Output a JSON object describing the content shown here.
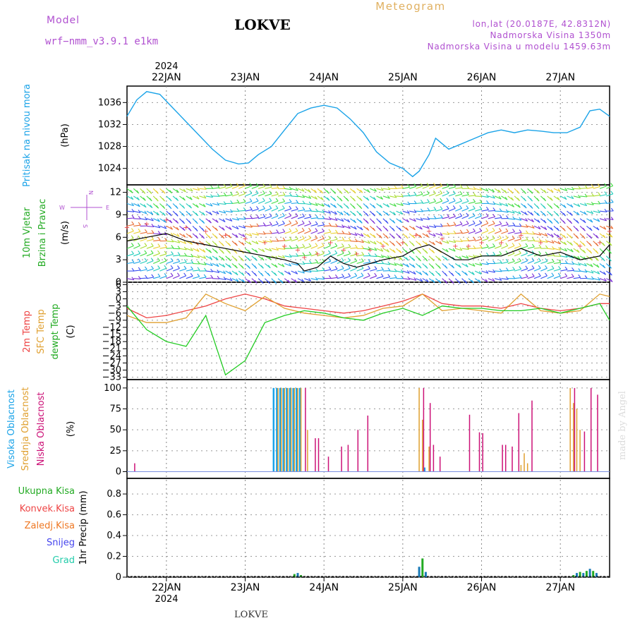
{
  "header": {
    "model_label": "Model",
    "model_name": "wrf−nmm_v3.9.1  e1km",
    "station": "LOKVE",
    "meteogram": "Meteogram",
    "coords": "lon,lat (20.0187E, 42.8312N)",
    "elevation": "Nadmorska Visina 1350m",
    "model_elevation": "Nadmorska Visina u modelu 1459.63m",
    "footer_station": "LOKVE",
    "watermark": "made by Angel"
  },
  "time_axis": {
    "year": "2024",
    "day_labels": [
      "22JAN",
      "23JAN",
      "24JAN",
      "25JAN",
      "26JAN",
      "27JAN"
    ],
    "day_offsets_hours": [
      12,
      36,
      60,
      84,
      108,
      132
    ],
    "range_hours": [
      0,
      147
    ]
  },
  "colors": {
    "pressure": "#1aa3e8",
    "temp2m": "#ee4444",
    "sfc": "#e0a030",
    "dewpt": "#22cc22",
    "high_cloud": "#1aa3e8",
    "mid_cloud": "#e0a030",
    "low_cloud": "#cc1177",
    "total_precip": "#22aa22",
    "conv_precip": "#ee4444",
    "frozen": "#ee7722",
    "snow": "#4444ee",
    "graupel": "#22ccaa",
    "purple_label": "#b050d0",
    "cyan_label": "#1aa3e8",
    "green_label": "#22aa22"
  },
  "panels": {
    "pressure": {
      "ylabel": "Pritisak na nivou mora",
      "unit": "(hPa)",
      "ticks": [
        "1024",
        "1028",
        "1032",
        "1036"
      ]
    },
    "wind": {
      "ylabel1": "10m Vjetar",
      "ylabel2": "Brzina i Pravac",
      "unit": "(m/s)",
      "ticks": [
        "0",
        "3",
        "6",
        "9",
        "12"
      ],
      "compass": [
        "S",
        "W",
        "E",
        "N"
      ]
    },
    "temp": {
      "ylabel1": "2m Temp",
      "ylabel2": "SFC Temp",
      "ylabel3": "dewpt Temp",
      "unit": "(C)",
      "ticks": [
        "6",
        "3",
        "0",
        "−3",
        "−6",
        "−9",
        "−12",
        "−15",
        "−18",
        "−21",
        "−24",
        "−27",
        "−30",
        "−33"
      ]
    },
    "cloud": {
      "ylabel1": "Visoka Oblacnost",
      "ylabel2": "Srednja Oblacnost",
      "ylabel3": "Niska Oblacnost",
      "unit": "(%)",
      "ticks": [
        "0",
        "25",
        "50",
        "75",
        "100"
      ]
    },
    "precip": {
      "legend": [
        "Ukupna Kisa",
        "Konvek.Kisa",
        "Zaledj.Kisa",
        "Snijeg",
        "Grad"
      ],
      "ylabel": "1hr Precip (mm)",
      "ticks": [
        "0",
        "0.2",
        "0.4",
        "0.6",
        "0.8"
      ]
    }
  },
  "chart_data": [
    {
      "type": "line",
      "title": "Pritisak na nivou mora",
      "ylabel": "(hPa)",
      "ylim": [
        1021,
        1039
      ],
      "x_hours": [
        0,
        3,
        6,
        10,
        14,
        18,
        22,
        26,
        30,
        34,
        37,
        40,
        44,
        48,
        52,
        56,
        60,
        64,
        68,
        72,
        76,
        80,
        84,
        87,
        89,
        92,
        94,
        98,
        102,
        106,
        110,
        114,
        118,
        122,
        126,
        130,
        134,
        138,
        141,
        144,
        147
      ],
      "series": [
        {
          "name": "Pritisak",
          "values": [
            1033.5,
            1036.5,
            1038,
            1037.5,
            1035,
            1032.5,
            1030,
            1027.5,
            1025.5,
            1024.8,
            1025,
            1026.5,
            1028,
            1031,
            1034,
            1035,
            1035.5,
            1035,
            1033,
            1030.5,
            1027,
            1025,
            1024,
            1022.5,
            1023.5,
            1026.5,
            1029.5,
            1027.5,
            1028.5,
            1029.5,
            1030.5,
            1031,
            1030.5,
            1031,
            1030.8,
            1030.5,
            1030.5,
            1031.5,
            1034.5,
            1034.8,
            1033.5
          ]
        }
      ]
    },
    {
      "type": "line",
      "title": "10m Vjetar Brzina i Pravac",
      "ylabel": "(m/s)",
      "ylim": [
        0,
        13
      ],
      "x_hours": [
        0,
        6,
        12,
        18,
        24,
        30,
        36,
        42,
        48,
        52,
        54,
        58,
        62,
        66,
        70,
        74,
        78,
        84,
        88,
        92,
        96,
        100,
        104,
        108,
        114,
        120,
        126,
        132,
        138,
        144,
        147
      ],
      "series": [
        {
          "name": "Brzina",
          "values": [
            5.5,
            6,
            6.5,
            5.5,
            5,
            4.5,
            4,
            3.5,
            3,
            2.5,
            1.5,
            2,
            3.5,
            2.5,
            2,
            2.5,
            3,
            3.5,
            4.5,
            5,
            4,
            3,
            3,
            3.5,
            3.5,
            4.5,
            3.5,
            4,
            3,
            3.5,
            5
          ]
        }
      ]
    },
    {
      "type": "line",
      "title": "2m Temp / SFC Temp / dewpt Temp",
      "ylabel": "(C)",
      "ylim": [
        -34,
        7
      ],
      "x_hours": [
        0,
        6,
        12,
        18,
        24,
        30,
        36,
        42,
        48,
        54,
        60,
        66,
        72,
        78,
        84,
        90,
        96,
        102,
        108,
        114,
        120,
        126,
        132,
        138,
        144,
        147
      ],
      "series": [
        {
          "name": "2m Temp",
          "values": [
            -4,
            -8,
            -7,
            -5,
            -3,
            0,
            2,
            0,
            -3,
            -4,
            -5,
            -6,
            -5,
            -3,
            -1,
            2,
            -2,
            -3,
            -3,
            -4,
            -2,
            -4,
            -5,
            -4,
            -2,
            -2
          ]
        },
        {
          "name": "SFC Temp",
          "values": [
            -7,
            -10,
            -10,
            -8,
            2,
            -2,
            -5,
            1,
            -4,
            -6,
            -7,
            -8,
            -7,
            -4,
            -3,
            2,
            -5,
            -4,
            -5,
            -6,
            2,
            -5,
            -6,
            -5,
            2,
            1
          ]
        },
        {
          "name": "dewpt Temp",
          "values": [
            -3,
            -13,
            -18,
            -20,
            -7,
            -32,
            -26,
            -10,
            -7,
            -5,
            -6,
            -8,
            -9,
            -6,
            -4,
            -7,
            -3,
            -4,
            -4,
            -5,
            -5,
            -4,
            -6,
            -4,
            -2,
            -9
          ]
        }
      ]
    },
    {
      "type": "bar",
      "title": "Oblacnost",
      "ylabel": "(%)",
      "ylim": [
        0,
        100
      ],
      "series": [
        {
          "name": "Visoka Oblacnost",
          "x_hours": [
            45,
            46,
            47,
            48,
            49,
            50,
            51,
            52,
            53,
            91
          ],
          "values": [
            100,
            100,
            100,
            100,
            100,
            100,
            100,
            100,
            100,
            5
          ]
        },
        {
          "name": "Srednja Oblacnost",
          "x_hours": [
            46,
            47,
            48,
            49,
            50,
            51,
            52,
            53,
            55,
            89,
            90,
            92,
            120,
            121,
            122,
            135,
            136,
            137,
            138
          ],
          "values": [
            100,
            100,
            100,
            100,
            100,
            100,
            100,
            100,
            50,
            100,
            62,
            30,
            8,
            22,
            10,
            100,
            82,
            75,
            50
          ]
        },
        {
          "name": "Niska Oblacnost",
          "x_hours": [
            2,
            54,
            57,
            58,
            61,
            65,
            67,
            70,
            73,
            90,
            92,
            93,
            95,
            104,
            107,
            108,
            114,
            115,
            117,
            119,
            123,
            136,
            139,
            141,
            143
          ],
          "values": [
            10,
            100,
            40,
            40,
            18,
            30,
            32,
            50,
            67,
            100,
            82,
            32,
            18,
            68,
            47,
            46,
            32,
            32,
            30,
            70,
            85,
            100,
            48,
            100,
            92
          ]
        }
      ]
    },
    {
      "type": "bar",
      "title": "1hr Precip",
      "ylabel": "(mm)",
      "ylim": [
        0,
        0.95
      ],
      "series": [
        {
          "name": "Ukupna Kisa",
          "x_hours": [
            51,
            52,
            53,
            89,
            90,
            91,
            136,
            137,
            138,
            139,
            140,
            141,
            142,
            143
          ],
          "values": [
            0.03,
            0.04,
            0.02,
            0.1,
            0.18,
            0.05,
            0.02,
            0.04,
            0.05,
            0.04,
            0.06,
            0.08,
            0.06,
            0.04
          ]
        }
      ]
    }
  ]
}
